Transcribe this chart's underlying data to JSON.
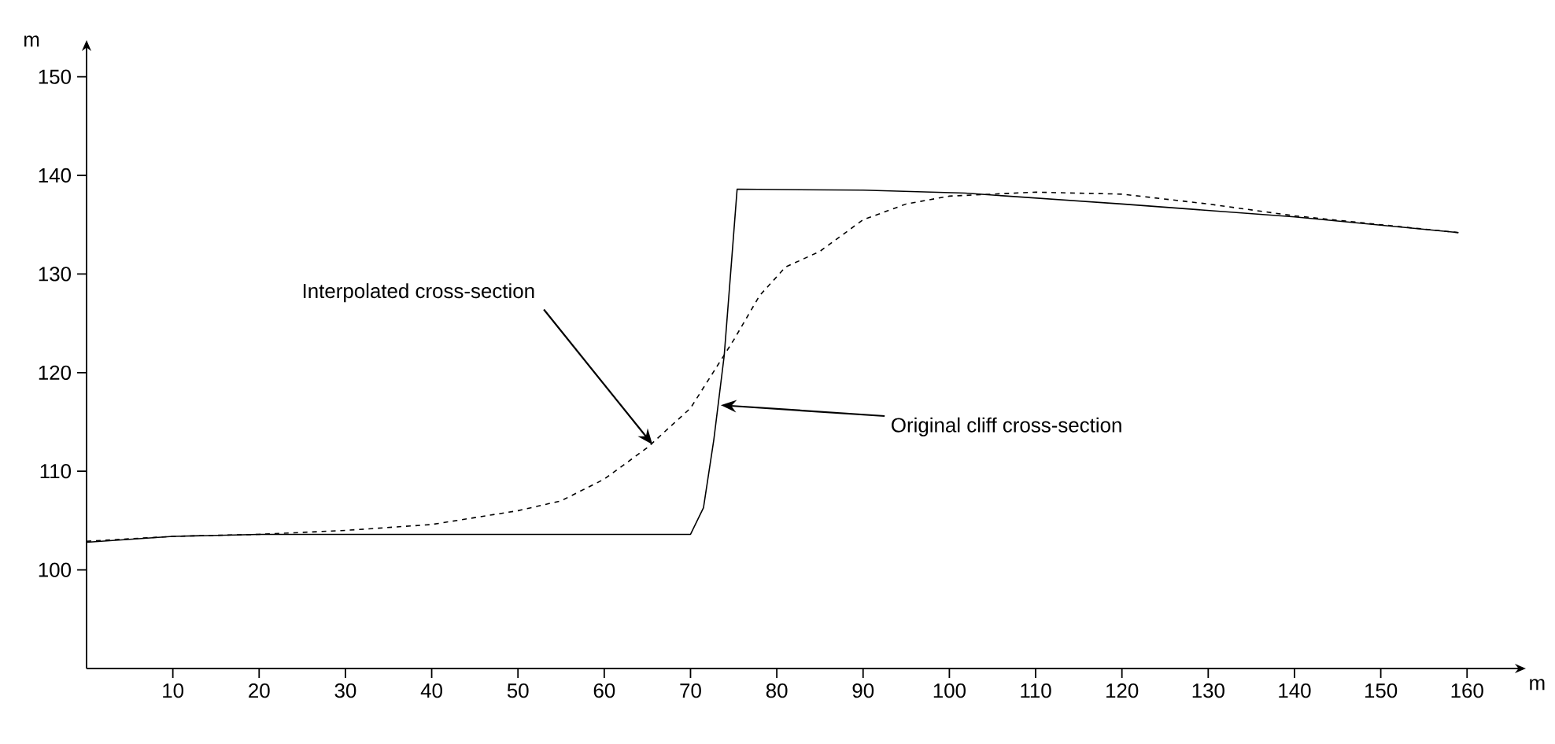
{
  "chart_data": {
    "type": "line",
    "xlabel": "m",
    "ylabel": "m",
    "xlim": [
      0,
      166
    ],
    "ylim": [
      90,
      153
    ],
    "xticks": [
      10,
      20,
      30,
      40,
      50,
      60,
      70,
      80,
      90,
      100,
      110,
      120,
      130,
      140,
      150,
      160
    ],
    "yticks": [
      100,
      110,
      120,
      130,
      140,
      150
    ],
    "grid": false,
    "marker": "none",
    "series": [
      {
        "color": "#000000",
        "line_style": "solid",
        "x": [
          0,
          10,
          20,
          30,
          40,
          50,
          60,
          70,
          71.5,
          72.7,
          73.9,
          74.8,
          75.4,
          90,
          101.8,
          120,
          140,
          159
        ],
        "values": [
          102.8,
          103.4,
          103.6,
          103.6,
          103.6,
          103.6,
          103.6,
          103.6,
          106.3,
          113.2,
          121.7,
          131.8,
          138.6,
          138.5,
          138.2,
          137.1,
          135.8,
          134.2
        ]
      },
      {
        "color": "#000000",
        "line_style": "dashed",
        "x": [
          0,
          10,
          20,
          30,
          40,
          50,
          55,
          60,
          65,
          70,
          75,
          78,
          81,
          85,
          90,
          95,
          100,
          110,
          120,
          130,
          140,
          150,
          159
        ],
        "values": [
          102.9,
          103.4,
          103.6,
          104,
          104.6,
          106,
          107,
          109.2,
          112.4,
          116.4,
          123.3,
          127.8,
          130.7,
          132.3,
          135.5,
          137.1,
          137.9,
          138.3,
          138.1,
          137.1,
          135.9,
          135,
          134.2
        ]
      }
    ],
    "annotations": [
      {
        "text": "Interpolated cross-section",
        "x": 65.6,
        "y": 112.7
      },
      {
        "text": "Original cliff cross-section",
        "x": 73.5,
        "y": 116.7
      }
    ]
  }
}
